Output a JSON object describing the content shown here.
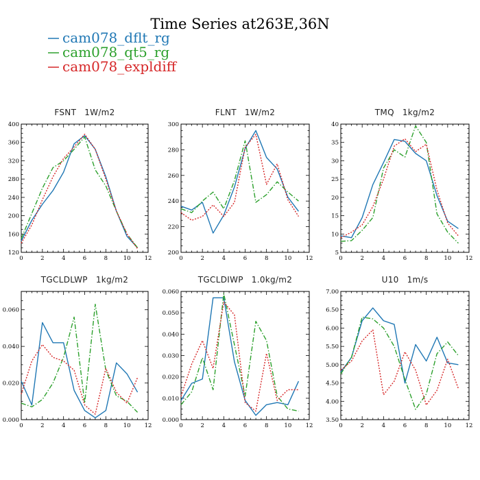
{
  "figure": {
    "title": "Time Series at263E,36N",
    "colors": {
      "dflt": "#1f77b4",
      "qt5": "#2ca02c",
      "expl": "#d62728"
    },
    "legend": [
      {
        "name": "cam078_dflt_rg",
        "key": "dflt",
        "dash": "solid"
      },
      {
        "name": "cam078_qt5_rg",
        "key": "qt5",
        "dash": "dashdot"
      },
      {
        "name": "cam078_expldiff",
        "key": "expl",
        "dash": "dotted"
      }
    ]
  },
  "chart_data": [
    {
      "type": "line",
      "var": "FSNT",
      "unit": "1W/m2",
      "xlim": [
        0,
        12
      ],
      "xticks": [
        0,
        2,
        4,
        6,
        8,
        10,
        12
      ],
      "ylim": [
        120,
        400
      ],
      "yticks": [
        "120",
        "160",
        "200",
        "240",
        "280",
        "320",
        "360",
        "400"
      ],
      "ytick_values": [
        120,
        160,
        200,
        240,
        280,
        320,
        360,
        400
      ],
      "x": [
        0,
        1,
        2,
        3,
        4,
        5,
        6,
        7,
        8,
        9,
        10,
        11
      ],
      "series": [
        {
          "name": "cam078_dflt_rg",
          "values": [
            145,
            190,
            225,
            255,
            295,
            357,
            375,
            345,
            285,
            210,
            155,
            130
          ]
        },
        {
          "name": "cam078_qt5_rg",
          "values": [
            150,
            205,
            260,
            305,
            320,
            345,
            372,
            300,
            265,
            210,
            160,
            130
          ]
        },
        {
          "name": "cam078_expldiff",
          "values": [
            140,
            180,
            235,
            285,
            325,
            350,
            378,
            345,
            280,
            210,
            160,
            128
          ]
        }
      ]
    },
    {
      "type": "line",
      "var": "FLNT",
      "unit": "1W/m2",
      "xlim": [
        0,
        12
      ],
      "xticks": [
        0,
        2,
        4,
        6,
        8,
        10,
        12
      ],
      "ylim": [
        200,
        300
      ],
      "yticks": [
        "200",
        "220",
        "240",
        "260",
        "280",
        "300"
      ],
      "ytick_values": [
        200,
        220,
        240,
        260,
        280,
        300
      ],
      "x": [
        0,
        1,
        2,
        3,
        4,
        5,
        6,
        7,
        8,
        9,
        10,
        11
      ],
      "series": [
        {
          "name": "cam078_dflt_rg",
          "values": [
            236,
            233,
            239,
            215,
            229,
            251,
            281,
            295,
            274,
            265,
            243,
            232
          ]
        },
        {
          "name": "cam078_qt5_rg",
          "values": [
            234,
            231,
            240,
            247,
            234,
            256,
            287,
            239,
            245,
            255,
            247,
            240
          ]
        },
        {
          "name": "cam078_expldiff",
          "values": [
            231,
            225,
            228,
            237,
            228,
            239,
            282,
            292,
            253,
            269,
            241,
            228
          ]
        }
      ]
    },
    {
      "type": "line",
      "var": "TMQ",
      "unit": "1kg/m2",
      "xlim": [
        0,
        12
      ],
      "xticks": [
        0,
        2,
        4,
        6,
        8,
        10,
        12
      ],
      "ylim": [
        5,
        40
      ],
      "yticks": [
        "5",
        "10",
        "15",
        "20",
        "25",
        "30",
        "35",
        "40"
      ],
      "ytick_values": [
        5,
        10,
        15,
        20,
        25,
        30,
        35,
        40
      ],
      "x": [
        0,
        1,
        2,
        3,
        4,
        5,
        6,
        7,
        8,
        9,
        10,
        11
      ],
      "series": [
        {
          "name": "cam078_dflt_rg",
          "values": [
            9.5,
            9,
            14.5,
            23.5,
            29.5,
            35.8,
            35.3,
            32,
            30,
            20.5,
            13.5,
            11.5
          ]
        },
        {
          "name": "cam078_qt5_rg",
          "values": [
            8,
            8.2,
            11,
            14.5,
            28,
            33,
            31,
            39.5,
            35,
            15.5,
            10.5,
            7.5
          ]
        },
        {
          "name": "cam078_expldiff",
          "values": [
            9,
            10.5,
            12.5,
            17.5,
            25,
            34,
            36,
            32.5,
            34.5,
            22,
            13,
            9.5
          ]
        }
      ]
    },
    {
      "type": "line",
      "var": "TGCLDLWP",
      "unit": "1kg/m2",
      "xlim": [
        0,
        12
      ],
      "xticks": [
        0,
        2,
        4,
        6,
        8,
        10,
        12
      ],
      "ylim": [
        0,
        0.07
      ],
      "yticks": [
        "0.000",
        "0.020",
        "0.040",
        "0.060"
      ],
      "ytick_values": [
        0,
        0.02,
        0.04,
        0.06
      ],
      "x": [
        0,
        1,
        2,
        3,
        4,
        5,
        6,
        7,
        8,
        9,
        10,
        11
      ],
      "series": [
        {
          "name": "cam078_dflt_rg",
          "values": [
            0.021,
            0.008,
            0.053,
            0.042,
            0.042,
            0.016,
            0.005,
            0.001,
            0.005,
            0.031,
            0.025,
            0.015
          ]
        },
        {
          "name": "cam078_qt5_rg",
          "values": [
            0.009,
            0.007,
            0.011,
            0.02,
            0.034,
            0.056,
            0.009,
            0.063,
            0.027,
            0.013,
            0.01,
            0.004
          ]
        },
        {
          "name": "cam078_expldiff",
          "values": [
            0.014,
            0.032,
            0.041,
            0.034,
            0.032,
            0.027,
            0.008,
            0.003,
            0.028,
            0.015,
            0.009,
            0.023
          ]
        }
      ]
    },
    {
      "type": "line",
      "var": "TGCLDIWP",
      "unit": "1.0kg/m2",
      "xlim": [
        0,
        12
      ],
      "xticks": [
        0,
        2,
        4,
        6,
        8,
        10,
        12
      ],
      "ylim": [
        0,
        0.06
      ],
      "yticks": [
        "0.000",
        "0.010",
        "0.020",
        "0.030",
        "0.040",
        "0.050",
        "0.060"
      ],
      "ytick_values": [
        0,
        0.01,
        0.02,
        0.03,
        0.04,
        0.05,
        0.06
      ],
      "x": [
        0,
        1,
        2,
        3,
        4,
        5,
        6,
        7,
        8,
        9,
        10,
        11
      ],
      "series": [
        {
          "name": "cam078_dflt_rg",
          "values": [
            0.009,
            0.017,
            0.019,
            0.057,
            0.057,
            0.027,
            0.009,
            0.002,
            0.007,
            0.008,
            0.007,
            0.018
          ]
        },
        {
          "name": "cam078_qt5_rg",
          "values": [
            0.007,
            0.013,
            0.029,
            0.014,
            0.059,
            0.035,
            0.011,
            0.046,
            0.037,
            0.011,
            0.005,
            0.004
          ]
        },
        {
          "name": "cam078_expldiff",
          "values": [
            0.011,
            0.026,
            0.037,
            0.024,
            0.055,
            0.049,
            0.008,
            0.004,
            0.031,
            0.009,
            0.014,
            0.014
          ]
        }
      ]
    },
    {
      "type": "line",
      "var": "U10",
      "unit": "1m/s",
      "xlim": [
        0,
        12
      ],
      "xticks": [
        0,
        2,
        4,
        6,
        8,
        10,
        12
      ],
      "ylim": [
        3.5,
        7
      ],
      "yticks": [
        "3.50",
        "4.00",
        "4.50",
        "5.00",
        "5.50",
        "6.00",
        "6.50",
        "7.00"
      ],
      "ytick_values": [
        3.5,
        4.0,
        4.5,
        5.0,
        5.5,
        6.0,
        6.5,
        7.0
      ],
      "x": [
        0,
        1,
        2,
        3,
        4,
        5,
        6,
        7,
        8,
        9,
        10,
        11
      ],
      "series": [
        {
          "name": "cam078_dflt_rg",
          "values": [
            4.8,
            5.2,
            6.2,
            6.55,
            6.2,
            6.1,
            4.5,
            5.55,
            5.1,
            5.75,
            5.05,
            5.0
          ]
        },
        {
          "name": "cam078_qt5_rg",
          "values": [
            4.75,
            5.2,
            6.3,
            6.25,
            6.0,
            5.5,
            4.6,
            3.78,
            4.2,
            5.3,
            5.62,
            5.25
          ]
        },
        {
          "name": "cam078_expldiff",
          "values": [
            4.85,
            5.1,
            5.65,
            5.95,
            4.18,
            4.55,
            5.35,
            4.85,
            3.9,
            4.3,
            5.15,
            4.35
          ]
        }
      ]
    }
  ]
}
